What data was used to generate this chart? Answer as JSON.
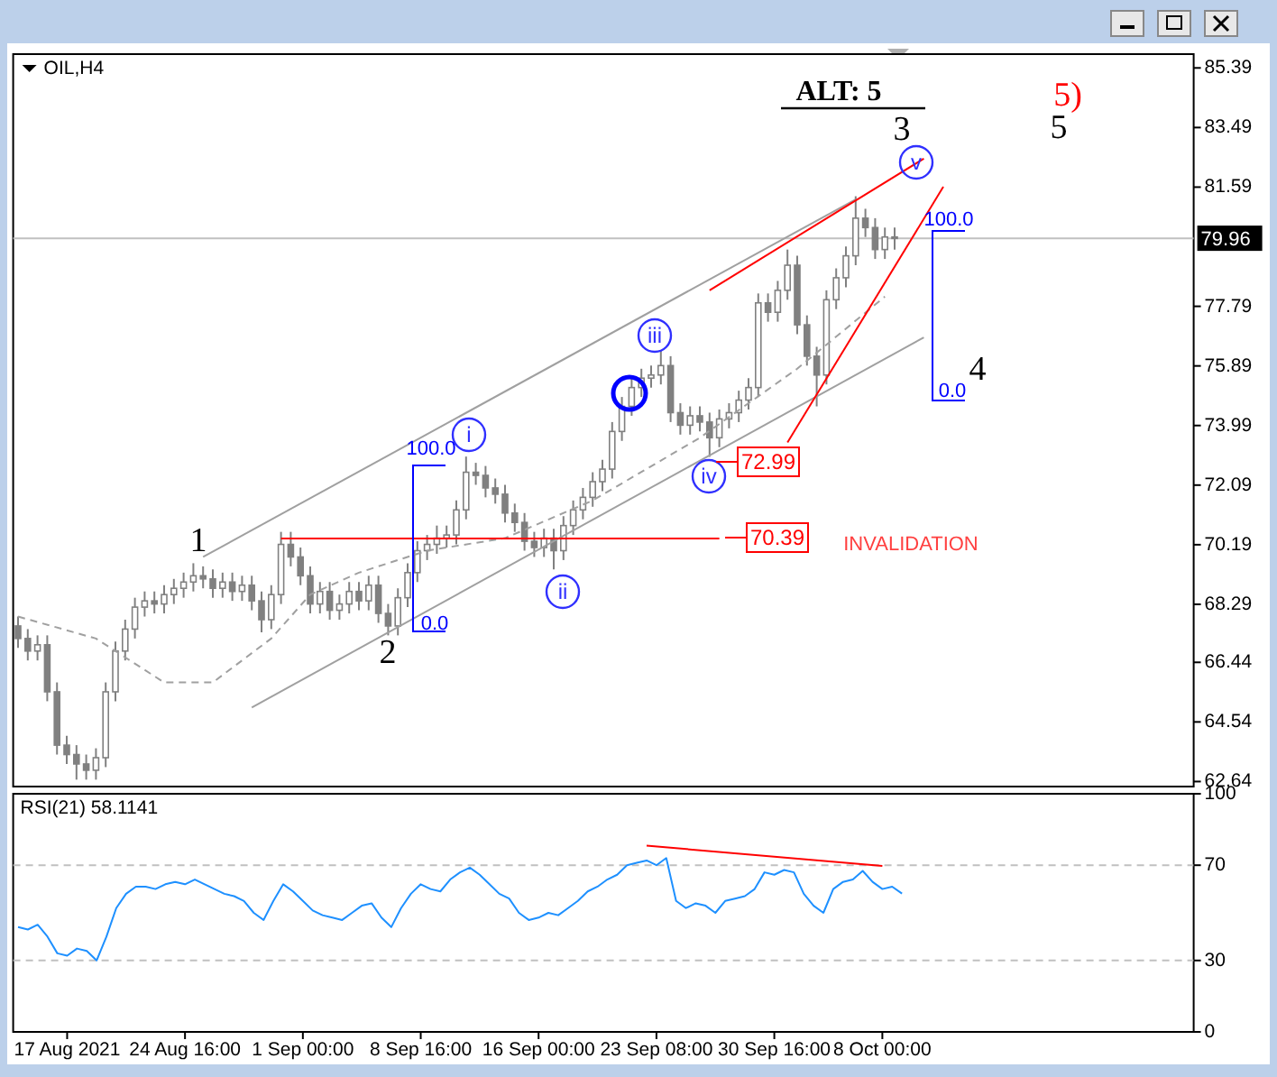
{
  "chart_data": [
    {
      "type": "candlestick",
      "title": "OIL,H4",
      "color": "#808080",
      "tick_labels": "y",
      "ylim": [
        62.48,
        85.83
      ],
      "yticks": [
        85.39,
        83.49,
        81.59,
        77.79,
        75.89,
        73.99,
        72.09,
        70.19,
        68.29,
        66.44,
        64.54,
        62.64
      ],
      "categories": [
        null,
        null,
        null,
        null,
        null,
        null,
        null,
        null,
        null,
        null,
        null,
        null,
        null,
        null,
        null,
        null,
        null,
        null,
        null,
        null,
        null,
        null,
        null,
        null,
        null,
        null,
        null,
        null,
        null,
        null,
        null,
        null,
        null,
        null,
        null,
        null,
        null,
        null,
        null,
        null,
        null,
        null,
        null,
        null,
        null,
        null,
        null,
        null,
        null,
        null,
        null,
        null,
        null,
        null,
        null,
        null,
        null,
        null,
        null,
        null,
        null,
        null,
        null,
        null,
        null,
        null,
        null,
        null,
        null,
        null,
        null,
        null,
        null,
        null,
        null,
        null,
        null,
        null,
        null,
        null,
        null,
        null,
        null,
        null,
        null,
        null,
        null,
        null,
        null,
        null,
        null,
        null,
        null,
        null,
        null,
        null,
        null,
        null,
        null,
        null,
        null,
        null,
        null,
        null,
        null,
        null,
        null,
        null,
        null,
        null,
        null,
        null,
        null,
        null,
        null,
        null,
        null,
        null,
        null,
        null,
        null
      ],
      "ohlc": [
        [
          67.6,
          67.9,
          66.9,
          67.2
        ],
        [
          67.2,
          67.5,
          66.5,
          66.8
        ],
        [
          66.8,
          67.3,
          66.5,
          67.0
        ],
        [
          67.0,
          67.3,
          65.2,
          65.5
        ],
        [
          65.5,
          65.8,
          63.5,
          63.8
        ],
        [
          63.8,
          64.1,
          63.2,
          63.5
        ],
        [
          63.5,
          63.8,
          62.7,
          63.2
        ],
        [
          63.2,
          63.5,
          62.7,
          63.0
        ],
        [
          63.0,
          63.7,
          62.7,
          63.4
        ],
        [
          63.4,
          65.8,
          63.1,
          65.5
        ],
        [
          65.5,
          67.1,
          65.2,
          66.8
        ],
        [
          66.8,
          67.8,
          66.5,
          67.5
        ],
        [
          67.5,
          68.5,
          67.2,
          68.2
        ],
        [
          68.2,
          68.7,
          67.9,
          68.4
        ],
        [
          68.4,
          68.7,
          68.0,
          68.3
        ],
        [
          68.3,
          68.9,
          68.0,
          68.6
        ],
        [
          68.6,
          69.1,
          68.3,
          68.8
        ],
        [
          68.8,
          69.3,
          68.5,
          69.0
        ],
        [
          69.0,
          69.6,
          68.7,
          69.2
        ],
        [
          69.2,
          69.5,
          68.8,
          69.1
        ],
        [
          69.1,
          69.4,
          68.5,
          68.8
        ],
        [
          68.8,
          69.3,
          68.5,
          69.0
        ],
        [
          69.0,
          69.3,
          68.4,
          68.7
        ],
        [
          68.7,
          69.2,
          68.4,
          68.9
        ],
        [
          68.9,
          69.2,
          68.1,
          68.4
        ],
        [
          68.4,
          68.7,
          67.4,
          67.8
        ],
        [
          67.8,
          68.9,
          67.5,
          68.6
        ],
        [
          68.6,
          70.6,
          68.3,
          70.2
        ],
        [
          70.2,
          70.6,
          69.5,
          69.8
        ],
        [
          69.8,
          70.1,
          68.9,
          69.2
        ],
        [
          69.2,
          69.5,
          68.0,
          68.3
        ],
        [
          68.3,
          69.0,
          68.0,
          68.7
        ],
        [
          68.7,
          69.0,
          67.8,
          68.1
        ],
        [
          68.1,
          68.6,
          67.8,
          68.3
        ],
        [
          68.3,
          69.0,
          68.0,
          68.7
        ],
        [
          68.7,
          69.0,
          68.1,
          68.4
        ],
        [
          68.4,
          69.2,
          68.1,
          68.9
        ],
        [
          68.9,
          69.2,
          67.7,
          68.0
        ],
        [
          68.0,
          68.3,
          67.3,
          67.6
        ],
        [
          67.6,
          68.8,
          67.3,
          68.5
        ],
        [
          68.5,
          69.6,
          68.2,
          69.3
        ],
        [
          69.3,
          70.3,
          69.0,
          70.0
        ],
        [
          70.0,
          70.5,
          69.7,
          70.2
        ],
        [
          70.2,
          70.8,
          69.9,
          70.4
        ],
        [
          70.4,
          70.8,
          70.1,
          70.5
        ],
        [
          70.5,
          71.6,
          70.2,
          71.3
        ],
        [
          71.3,
          73.0,
          71.0,
          72.5
        ],
        [
          72.5,
          72.8,
          72.1,
          72.4
        ],
        [
          72.4,
          72.7,
          71.7,
          72.0
        ],
        [
          72.0,
          72.3,
          71.5,
          71.8
        ],
        [
          71.8,
          72.1,
          70.9,
          71.2
        ],
        [
          71.2,
          71.5,
          70.6,
          70.9
        ],
        [
          70.9,
          71.2,
          70.0,
          70.3
        ],
        [
          70.3,
          70.6,
          69.8,
          70.1
        ],
        [
          70.1,
          70.7,
          69.8,
          70.4
        ],
        [
          70.4,
          70.7,
          69.4,
          70.0
        ],
        [
          70.0,
          71.1,
          69.7,
          70.8
        ],
        [
          70.8,
          71.6,
          70.5,
          71.3
        ],
        [
          71.3,
          72.0,
          71.0,
          71.7
        ],
        [
          71.7,
          72.5,
          71.4,
          72.2
        ],
        [
          72.2,
          72.9,
          71.9,
          72.6
        ],
        [
          72.6,
          74.1,
          72.3,
          73.8
        ],
        [
          73.8,
          74.9,
          73.5,
          74.6
        ],
        [
          74.6,
          75.5,
          74.3,
          75.2
        ],
        [
          75.2,
          75.8,
          74.9,
          75.5
        ],
        [
          75.5,
          75.9,
          75.2,
          75.6
        ],
        [
          75.6,
          76.4,
          75.3,
          75.9
        ],
        [
          75.9,
          76.2,
          74.1,
          74.4
        ],
        [
          74.4,
          74.7,
          73.7,
          74.0
        ],
        [
          74.0,
          74.6,
          73.7,
          74.3
        ],
        [
          74.3,
          74.6,
          73.8,
          74.1
        ],
        [
          74.1,
          74.4,
          72.99,
          73.6
        ],
        [
          73.6,
          74.5,
          73.3,
          74.2
        ],
        [
          74.2,
          74.7,
          73.9,
          74.4
        ],
        [
          74.4,
          75.1,
          74.1,
          74.8
        ],
        [
          74.8,
          75.5,
          74.5,
          75.2
        ],
        [
          75.2,
          78.2,
          74.9,
          77.9
        ],
        [
          77.9,
          78.2,
          77.3,
          77.6
        ],
        [
          77.6,
          78.6,
          77.3,
          78.3
        ],
        [
          78.3,
          79.6,
          78.0,
          79.1
        ],
        [
          79.1,
          79.4,
          76.9,
          77.2
        ],
        [
          77.2,
          77.5,
          75.9,
          76.2
        ],
        [
          76.2,
          76.5,
          74.6,
          75.6
        ],
        [
          75.6,
          78.3,
          75.3,
          78.0
        ],
        [
          78.0,
          79.0,
          77.7,
          78.7
        ],
        [
          78.7,
          79.7,
          78.4,
          79.4
        ],
        [
          79.4,
          81.3,
          79.1,
          80.6
        ],
        [
          80.6,
          80.9,
          80.0,
          80.3
        ],
        [
          80.3,
          80.6,
          79.3,
          79.6
        ],
        [
          79.6,
          80.3,
          79.3,
          80.0
        ],
        [
          80.0,
          80.3,
          79.6,
          79.96
        ],
        null,
        null,
        null,
        null,
        null,
        null,
        null,
        null,
        null,
        null,
        null,
        null,
        null,
        null,
        null,
        null,
        null,
        null,
        null,
        null,
        null,
        null,
        null,
        null,
        null,
        null,
        null,
        null,
        null,
        null
      ],
      "ref_lines": [
        {
          "axis": "y",
          "value": 79.96,
          "label": "79.96",
          "color": "#c0c0c0"
        }
      ],
      "series": [
        {
          "type": "line",
          "values": [
            67.9,
            null,
            null,
            null,
            null,
            null,
            null,
            null,
            67.2,
            null,
            null,
            null,
            null,
            null,
            null,
            65.8,
            null,
            null,
            null,
            null,
            65.8,
            null,
            null,
            null,
            null,
            null,
            67.2,
            null,
            null,
            null,
            68.6,
            null,
            null,
            null,
            null,
            69.3,
            null,
            null,
            null,
            null,
            null,
            null,
            70.0,
            null,
            null,
            null,
            null,
            null,
            null,
            null,
            70.4,
            null,
            null,
            null,
            null,
            null,
            null,
            null,
            null,
            71.6,
            null,
            null,
            null,
            null,
            null,
            null,
            null,
            null,
            null,
            null,
            73.6,
            null,
            null,
            null,
            null,
            null,
            null,
            null,
            null,
            null,
            75.8,
            null,
            null,
            null,
            null,
            null,
            null,
            null,
            null,
            78.1,
            null,
            null,
            null,
            null,
            null,
            null,
            null,
            null,
            null,
            null,
            null,
            null,
            null,
            null,
            null,
            null,
            null,
            null,
            null,
            null,
            null,
            null,
            null,
            null,
            null,
            null,
            null,
            null,
            null,
            null,
            null
          ],
          "color": "#a0a0a0",
          "line_style": "dashed"
        },
        {
          "type": "line",
          "values": [
            null,
            null,
            null,
            null,
            null,
            null,
            null,
            null,
            null,
            null,
            null,
            null,
            null,
            null,
            null,
            null,
            null,
            null,
            null,
            69.8,
            null,
            null,
            null,
            null,
            null,
            null,
            null,
            null,
            null,
            null,
            null,
            null,
            null,
            null,
            null,
            null,
            null,
            null,
            null,
            null,
            null,
            null,
            null,
            null,
            null,
            null,
            null,
            null,
            null,
            null,
            null,
            null,
            null,
            null,
            null,
            null,
            null,
            null,
            null,
            null,
            null,
            null,
            null,
            null,
            null,
            null,
            null,
            null,
            null,
            null,
            null,
            null,
            null,
            null,
            null,
            null,
            null,
            null,
            null,
            null,
            null,
            null,
            null,
            null,
            null,
            null,
            81.2,
            null,
            null,
            null,
            null,
            null,
            null,
            null,
            null,
            null,
            null,
            null,
            null,
            null,
            null,
            null,
            null,
            null,
            null,
            null,
            null,
            null,
            null,
            null,
            null,
            null,
            null,
            null,
            null,
            null,
            null,
            null,
            null,
            null,
            null
          ],
          "color": "#a0a0a0"
        },
        {
          "type": "line",
          "values": [
            null,
            null,
            null,
            null,
            null,
            null,
            null,
            null,
            null,
            null,
            null,
            null,
            null,
            null,
            null,
            null,
            null,
            null,
            null,
            null,
            null,
            null,
            null,
            null,
            65.0,
            null,
            null,
            null,
            null,
            null,
            null,
            null,
            null,
            null,
            null,
            null,
            null,
            null,
            null,
            null,
            null,
            null,
            null,
            null,
            null,
            null,
            null,
            null,
            null,
            null,
            null,
            null,
            null,
            null,
            null,
            null,
            null,
            null,
            null,
            null,
            null,
            null,
            null,
            null,
            null,
            null,
            null,
            null,
            null,
            null,
            null,
            null,
            null,
            null,
            null,
            null,
            null,
            null,
            null,
            null,
            null,
            null,
            null,
            null,
            null,
            null,
            null,
            null,
            null,
            null,
            null,
            null,
            null,
            76.8,
            null,
            null,
            null,
            null,
            null,
            null,
            null,
            null,
            null,
            null,
            null,
            null,
            null,
            null,
            null,
            null,
            null,
            null,
            null,
            null,
            null,
            null,
            null,
            null,
            null,
            null,
            null
          ],
          "color": "#a0a0a0"
        },
        {
          "type": "line",
          "values": [
            null,
            null,
            null,
            null,
            null,
            null,
            null,
            null,
            null,
            null,
            null,
            null,
            null,
            null,
            null,
            null,
            null,
            null,
            null,
            null,
            null,
            null,
            null,
            null,
            null,
            null,
            null,
            null,
            null,
            null,
            null,
            null,
            null,
            null,
            null,
            null,
            null,
            null,
            null,
            null,
            null,
            null,
            null,
            null,
            null,
            null,
            null,
            null,
            null,
            null,
            null,
            null,
            null,
            null,
            null,
            null,
            null,
            null,
            null,
            null,
            null,
            null,
            null,
            null,
            null,
            null,
            null,
            null,
            null,
            null,
            null,
            78.3,
            null,
            null,
            null,
            null,
            null,
            null,
            null,
            null,
            null,
            null,
            null,
            null,
            null,
            null,
            null,
            null,
            null,
            null,
            null,
            null,
            null,
            82.5,
            null,
            null,
            null,
            null,
            null,
            null,
            null,
            null,
            null,
            null,
            null,
            null,
            null,
            null,
            null,
            null,
            null,
            null,
            null,
            null,
            null,
            null,
            null,
            null,
            null,
            null,
            null
          ],
          "color": "#ff0000"
        },
        {
          "type": "line",
          "values": [
            null,
            null,
            null,
            null,
            null,
            null,
            null,
            null,
            null,
            null,
            null,
            null,
            null,
            null,
            null,
            null,
            null,
            null,
            null,
            null,
            null,
            null,
            null,
            null,
            null,
            null,
            null,
            null,
            null,
            null,
            null,
            null,
            null,
            null,
            null,
            null,
            null,
            null,
            null,
            null,
            null,
            null,
            null,
            null,
            null,
            null,
            null,
            null,
            null,
            null,
            null,
            null,
            null,
            null,
            null,
            null,
            null,
            null,
            null,
            null,
            null,
            null,
            null,
            null,
            null,
            null,
            null,
            null,
            null,
            null,
            null,
            null,
            null,
            null,
            null,
            null,
            null,
            null,
            null,
            73.45,
            null,
            null,
            null,
            null,
            null,
            null,
            null,
            null,
            null,
            null,
            null,
            null,
            null,
            null,
            null,
            81.6,
            null,
            null,
            null,
            null,
            null,
            null,
            null,
            null,
            null,
            null,
            null,
            null,
            null,
            null,
            null,
            null,
            null,
            null,
            null,
            null,
            null,
            null,
            null,
            null,
            null
          ],
          "color": "#ff0000"
        },
        {
          "type": "line",
          "values": [
            null,
            null,
            null,
            null,
            null,
            null,
            null,
            null,
            null,
            null,
            null,
            null,
            null,
            null,
            null,
            null,
            null,
            null,
            null,
            null,
            null,
            null,
            null,
            null,
            null,
            null,
            null,
            70.39,
            null,
            null,
            null,
            null,
            null,
            null,
            null,
            null,
            null,
            null,
            null,
            null,
            null,
            null,
            null,
            null,
            null,
            null,
            null,
            null,
            null,
            null,
            null,
            null,
            null,
            null,
            null,
            null,
            null,
            null,
            null,
            null,
            null,
            null,
            null,
            null,
            null,
            null,
            null,
            null,
            null,
            null,
            null,
            null,
            70.39,
            null,
            null,
            null,
            null,
            null,
            null,
            null,
            null,
            null,
            null,
            null,
            null,
            null,
            null,
            null,
            null,
            null,
            null,
            null,
            null,
            null,
            null,
            null,
            null,
            null,
            null,
            null,
            null,
            null,
            null,
            null,
            null,
            null,
            null,
            null,
            null,
            null,
            null,
            null,
            null,
            null,
            null,
            null,
            null,
            null,
            null,
            null,
            null
          ],
          "color": "#ff0000"
        }
      ],
      "annotations": [
        "1",
        "2",
        "3",
        "4",
        "5",
        "5)",
        "ALT: 5",
        "i",
        "ii",
        "iii",
        "iv",
        "v",
        "100.0",
        "0.0",
        "100.0",
        "0.0",
        "72.99",
        "70.39",
        "INVALIDATION"
      ]
    },
    {
      "type": "line",
      "title": "RSI(21) 58.1141",
      "ylim": [
        0,
        100
      ],
      "yticks": [
        0,
        30,
        70,
        100
      ],
      "categories": [
        null,
        null,
        null,
        null,
        null,
        "17 Aug 2021",
        null,
        null,
        null,
        null,
        null,
        null,
        null,
        null,
        null,
        null,
        null,
        "24 Aug 16:00",
        null,
        null,
        null,
        null,
        null,
        null,
        null,
        null,
        null,
        null,
        null,
        "1 Sep 00:00",
        null,
        null,
        null,
        null,
        null,
        null,
        null,
        null,
        null,
        null,
        null,
        "8 Sep 16:00",
        null,
        null,
        null,
        null,
        null,
        null,
        null,
        null,
        null,
        null,
        null,
        "16 Sep 00:00",
        null,
        null,
        null,
        null,
        null,
        null,
        null,
        null,
        null,
        null,
        null,
        "23 Sep 08:00",
        null,
        null,
        null,
        null,
        null,
        null,
        null,
        null,
        null,
        null,
        null,
        "30 Sep 16:00",
        null,
        null,
        null,
        null,
        null,
        null,
        null,
        null,
        null,
        null,
        "8 Oct 00:00",
        null,
        null,
        null,
        null,
        null,
        null,
        null,
        null,
        null,
        null,
        null,
        null,
        null,
        null,
        null,
        null,
        null,
        null,
        null,
        null,
        null,
        null,
        null,
        null,
        null,
        null,
        null,
        null,
        null,
        null,
        null
      ],
      "ref_lines": [
        {
          "axis": "y",
          "value": 30,
          "color": "#c0c0c0",
          "line_style": "dashed"
        },
        {
          "axis": "y",
          "value": 70,
          "color": "#c0c0c0",
          "line_style": "dashed"
        }
      ],
      "series": [
        {
          "values": [
            44,
            43,
            45,
            40,
            33,
            32,
            35,
            34,
            30,
            40,
            52,
            58,
            61,
            61,
            60,
            62,
            63,
            62,
            64,
            62,
            60,
            58,
            57,
            55,
            50,
            47,
            55,
            62,
            59,
            55,
            51,
            49,
            48,
            47,
            50,
            53,
            54,
            48,
            44,
            52,
            58,
            62,
            60,
            59,
            64,
            67,
            69,
            66,
            62,
            58,
            56,
            50,
            47,
            48,
            50,
            49,
            52,
            55,
            59,
            61,
            64,
            66,
            70,
            71,
            72,
            70,
            73,
            55,
            52,
            54,
            53,
            50,
            55,
            56,
            57,
            60,
            67,
            66,
            68,
            67,
            58,
            53,
            50,
            60,
            63,
            64,
            67.6,
            63,
            60,
            61,
            58.1,
            null,
            null,
            null,
            null,
            null,
            null,
            null,
            null,
            null,
            null,
            null,
            null,
            null,
            null,
            null,
            null,
            null,
            null,
            null,
            null,
            null,
            null,
            null,
            null,
            null,
            null,
            null,
            null,
            null
          ],
          "color": "#1e90ff"
        },
        {
          "values": [
            null,
            null,
            null,
            null,
            null,
            null,
            null,
            null,
            null,
            null,
            null,
            null,
            null,
            null,
            null,
            null,
            null,
            null,
            null,
            null,
            null,
            null,
            null,
            null,
            null,
            null,
            null,
            null,
            null,
            null,
            null,
            null,
            null,
            null,
            null,
            null,
            null,
            null,
            null,
            null,
            null,
            null,
            null,
            null,
            null,
            null,
            null,
            null,
            null,
            null,
            null,
            null,
            null,
            null,
            null,
            null,
            null,
            null,
            null,
            null,
            null,
            null,
            null,
            null,
            78.2,
            null,
            null,
            null,
            null,
            null,
            null,
            null,
            null,
            null,
            null,
            null,
            null,
            null,
            null,
            null,
            null,
            null,
            null,
            null,
            null,
            null,
            null,
            null,
            69.7,
            null,
            null,
            null,
            null,
            null,
            null,
            null,
            null,
            null,
            null,
            null,
            null,
            null,
            null,
            null,
            null,
            null,
            null,
            null,
            null,
            null,
            null,
            null,
            null,
            null,
            null,
            null,
            null,
            null,
            null,
            null
          ],
          "color": "#ff0000"
        }
      ]
    }
  ]
}
